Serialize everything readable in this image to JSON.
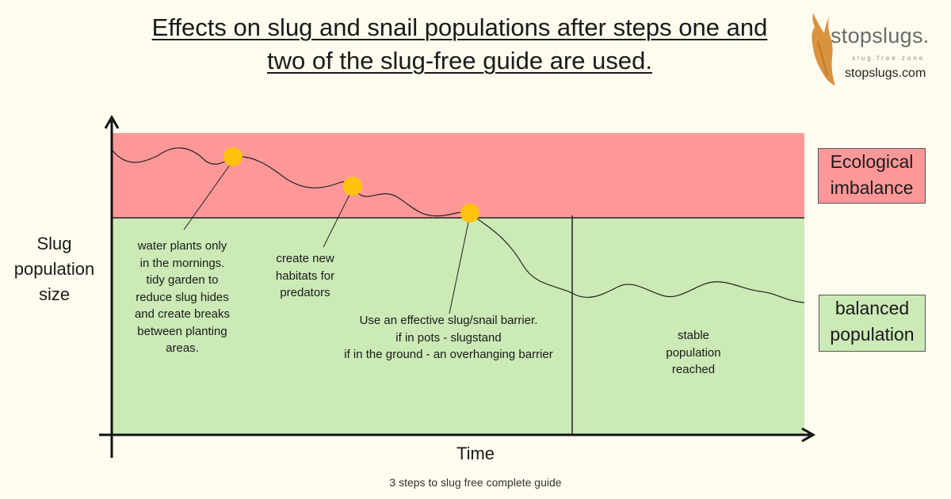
{
  "header": {
    "title_line1": "Effects on slug and snail populations after steps one and",
    "title_line2": "two of the slug-free guide are used."
  },
  "brand": {
    "name": "stopslugs.",
    "tagline": "slug.free.zone",
    "url": "stopslugs.com",
    "logo_icon": "slug-icon"
  },
  "diagram": {
    "y_axis_label_line1": "Slug",
    "y_axis_label_line2": "population",
    "y_axis_label_line3": "size",
    "x_axis_label": "Time",
    "zones": {
      "imbalance": {
        "line1": "Ecological",
        "line2": "imbalance",
        "color": "#fe9898"
      },
      "balanced": {
        "line1": "balanced",
        "line2": "population",
        "color": "#cbeab6"
      }
    },
    "annotations": [
      {
        "lines": [
          "water plants only",
          "in the mornings.",
          "tidy garden to",
          "reduce slug hides",
          "and create breaks",
          "between planting",
          "areas."
        ]
      },
      {
        "lines": [
          "create new",
          "habitats for",
          "predators"
        ]
      },
      {
        "lines": [
          "Use an effective slug/snail barrier.",
          "if in pots - slugstand",
          "if in the ground - an overhanging barrier"
        ]
      },
      {
        "lines": [
          "stable",
          "population",
          "reached"
        ]
      }
    ],
    "marker_color": "#fec20f"
  },
  "footer": {
    "caption": "3 steps to slug free complete guide"
  }
}
